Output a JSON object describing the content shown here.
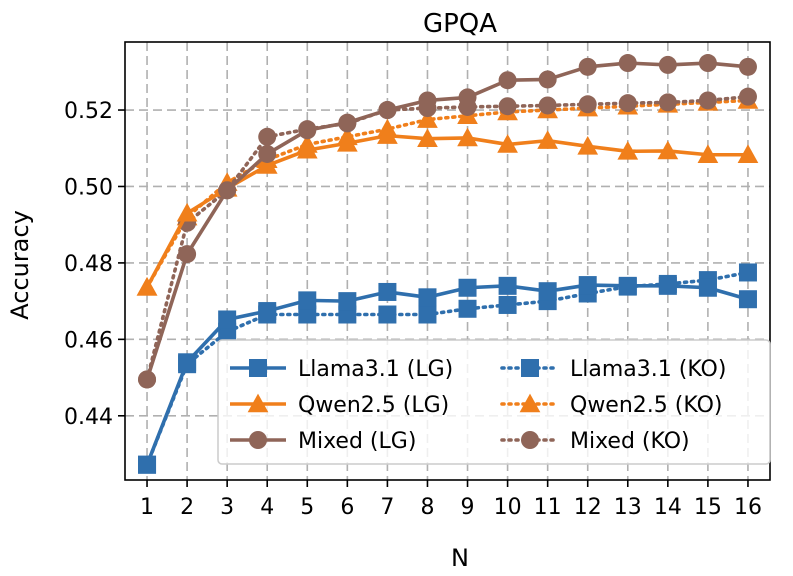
{
  "chart_data": {
    "type": "line",
    "title": "GPQA",
    "xlabel": "N",
    "ylabel": "Accuracy",
    "x": [
      1,
      2,
      3,
      4,
      5,
      6,
      7,
      8,
      9,
      10,
      11,
      12,
      13,
      14,
      15,
      16
    ],
    "x_tick_labels": [
      "1",
      "2",
      "3",
      "4",
      "5",
      "6",
      "7",
      "8",
      "9",
      "10",
      "11",
      "12",
      "13",
      "14",
      "15",
      "16"
    ],
    "xlim": [
      0.45,
      16.55
    ],
    "ylim": [
      0.4232,
      0.5378
    ],
    "y_ticks": [
      0.44,
      0.46,
      0.48,
      0.5,
      0.52
    ],
    "y_tick_labels": [
      "0.44",
      "0.46",
      "0.48",
      "0.50",
      "0.52"
    ],
    "grid": true,
    "legend_position": "lower-right",
    "series": [
      {
        "name": "Llama3.1 (LG)",
        "color": "#2f6fad",
        "line_style": "solid",
        "marker": "square",
        "values": [
          0.4272,
          0.454,
          0.4652,
          0.4674,
          0.4702,
          0.47,
          0.4724,
          0.471,
          0.4735,
          0.474,
          0.4726,
          0.4742,
          0.474,
          0.474,
          0.4735,
          0.4705
        ]
      },
      {
        "name": "Qwen2.5 (LG)",
        "color": "#f07f1b",
        "line_style": "solid",
        "marker": "triangle",
        "values": [
          0.4736,
          0.493,
          0.4995,
          0.5055,
          0.5095,
          0.5113,
          0.5133,
          0.5125,
          0.5127,
          0.511,
          0.512,
          0.5105,
          0.5092,
          0.5093,
          0.5083,
          0.5083
        ]
      },
      {
        "name": "Mixed (LG)",
        "color": "#8f6558",
        "line_style": "solid",
        "marker": "circle",
        "values": [
          0.4495,
          0.4823,
          0.499,
          0.5085,
          0.5147,
          0.5167,
          0.52,
          0.5225,
          0.5233,
          0.5278,
          0.528,
          0.5313,
          0.5323,
          0.5318,
          0.5323,
          0.5313
        ]
      },
      {
        "name": "Llama3.1 (KO)",
        "color": "#2f6fad",
        "line_style": "dotted",
        "marker": "square",
        "values": [
          0.4272,
          0.4535,
          0.462,
          0.4665,
          0.4665,
          0.4665,
          0.4665,
          0.4665,
          0.468,
          0.469,
          0.47,
          0.472,
          0.4738,
          0.4745,
          0.4755,
          0.4775
        ]
      },
      {
        "name": "Qwen2.5 (KO)",
        "color": "#f07f1b",
        "line_style": "dotted",
        "marker": "triangle",
        "values": [
          0.4736,
          0.492,
          0.501,
          0.507,
          0.511,
          0.513,
          0.515,
          0.5175,
          0.5185,
          0.5195,
          0.52,
          0.5205,
          0.521,
          0.5215,
          0.522,
          0.5225
        ]
      },
      {
        "name": "Mixed (KO)",
        "color": "#8f6558",
        "line_style": "dotted",
        "marker": "circle",
        "values": [
          0.4495,
          0.4905,
          0.499,
          0.513,
          0.515,
          0.5165,
          0.52,
          0.5205,
          0.5208,
          0.521,
          0.5212,
          0.5215,
          0.5218,
          0.522,
          0.5225,
          0.5235
        ]
      }
    ],
    "legend_order": [
      0,
      3,
      1,
      4,
      2,
      5
    ]
  }
}
